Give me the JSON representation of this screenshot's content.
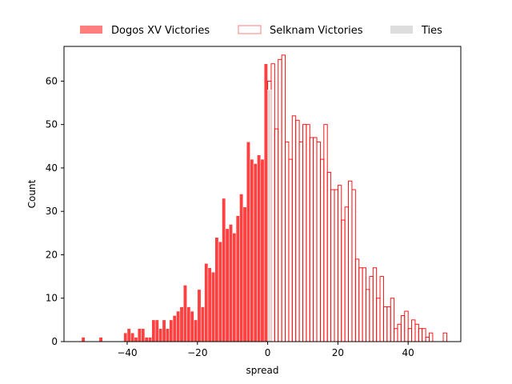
{
  "chart_data": {
    "type": "bar",
    "subtype": "histogram",
    "title": "",
    "xlabel": "spread",
    "ylabel": "Count",
    "xlim": [
      -58,
      55
    ],
    "ylim": [
      0,
      68
    ],
    "xticks": [
      -40,
      -20,
      0,
      20,
      40
    ],
    "yticks": [
      0,
      10,
      20,
      30,
      40,
      50,
      60
    ],
    "xtick_labels": [
      "−40",
      "−20",
      "0",
      "20",
      "40"
    ],
    "ytick_labels": [
      "0",
      "10",
      "20",
      "30",
      "40",
      "50",
      "60"
    ],
    "grid": false,
    "legend": {
      "placement": "top-center-outside",
      "columns": 3
    },
    "bin_width": 1,
    "series": [
      {
        "name": "Dogos XV Victories",
        "style": "filled",
        "color": "#ff0000",
        "points": [
          [
            -53,
            1
          ],
          [
            -48,
            1
          ],
          [
            -41,
            2
          ],
          [
            -40,
            3
          ],
          [
            -39,
            2
          ],
          [
            -38,
            1
          ],
          [
            -37,
            3
          ],
          [
            -36,
            3
          ],
          [
            -35,
            1
          ],
          [
            -34,
            1
          ],
          [
            -33,
            5
          ],
          [
            -32,
            5
          ],
          [
            -31,
            3
          ],
          [
            -30,
            5
          ],
          [
            -29,
            3
          ],
          [
            -28,
            5
          ],
          [
            -27,
            6
          ],
          [
            -26,
            7
          ],
          [
            -25,
            8
          ],
          [
            -24,
            13
          ],
          [
            -23,
            8
          ],
          [
            -22,
            7
          ],
          [
            -21,
            5
          ],
          [
            -20,
            12
          ],
          [
            -19,
            8
          ],
          [
            -18,
            18
          ],
          [
            -17,
            17
          ],
          [
            -16,
            16
          ],
          [
            -15,
            24
          ],
          [
            -14,
            23
          ],
          [
            -13,
            33
          ],
          [
            -12,
            26
          ],
          [
            -11,
            27
          ],
          [
            -10,
            25
          ],
          [
            -9,
            29
          ],
          [
            -8,
            34
          ],
          [
            -7,
            31
          ],
          [
            -6,
            46
          ],
          [
            -5,
            42
          ],
          [
            -4,
            41
          ],
          [
            -3,
            43
          ],
          [
            -2,
            42
          ],
          [
            -1,
            64
          ]
        ]
      },
      {
        "name": "Selknam Victories",
        "style": "outline",
        "color": "#ff0000",
        "points": [
          [
            0,
            60
          ],
          [
            1,
            64
          ],
          [
            2,
            49
          ],
          [
            3,
            65
          ],
          [
            4,
            66
          ],
          [
            5,
            46
          ],
          [
            6,
            42
          ],
          [
            7,
            52
          ],
          [
            8,
            51
          ],
          [
            9,
            46
          ],
          [
            10,
            50
          ],
          [
            11,
            50
          ],
          [
            12,
            47
          ],
          [
            13,
            47
          ],
          [
            14,
            46
          ],
          [
            15,
            42
          ],
          [
            16,
            50
          ],
          [
            17,
            39
          ],
          [
            18,
            35
          ],
          [
            19,
            35
          ],
          [
            20,
            36
          ],
          [
            21,
            28
          ],
          [
            22,
            31
          ],
          [
            23,
            37
          ],
          [
            24,
            35
          ],
          [
            25,
            19
          ],
          [
            26,
            17
          ],
          [
            27,
            17
          ],
          [
            28,
            12
          ],
          [
            29,
            15
          ],
          [
            30,
            17
          ],
          [
            31,
            10
          ],
          [
            32,
            15
          ],
          [
            33,
            8
          ],
          [
            34,
            8
          ],
          [
            35,
            10
          ],
          [
            36,
            3
          ],
          [
            37,
            4
          ],
          [
            38,
            6
          ],
          [
            39,
            7
          ],
          [
            40,
            3
          ],
          [
            41,
            5
          ],
          [
            42,
            4
          ],
          [
            43,
            3
          ],
          [
            44,
            3
          ],
          [
            45,
            1
          ],
          [
            46,
            2
          ],
          [
            50,
            2
          ]
        ]
      },
      {
        "name": "Ties",
        "style": "filled",
        "color": "#dddddd",
        "points": [
          [
            0,
            58
          ]
        ]
      }
    ]
  },
  "colors": {
    "dogos_fill": "#ff7f7f",
    "selknam_edge": "#ff7f7f",
    "ties_fill": "#dddddd"
  }
}
